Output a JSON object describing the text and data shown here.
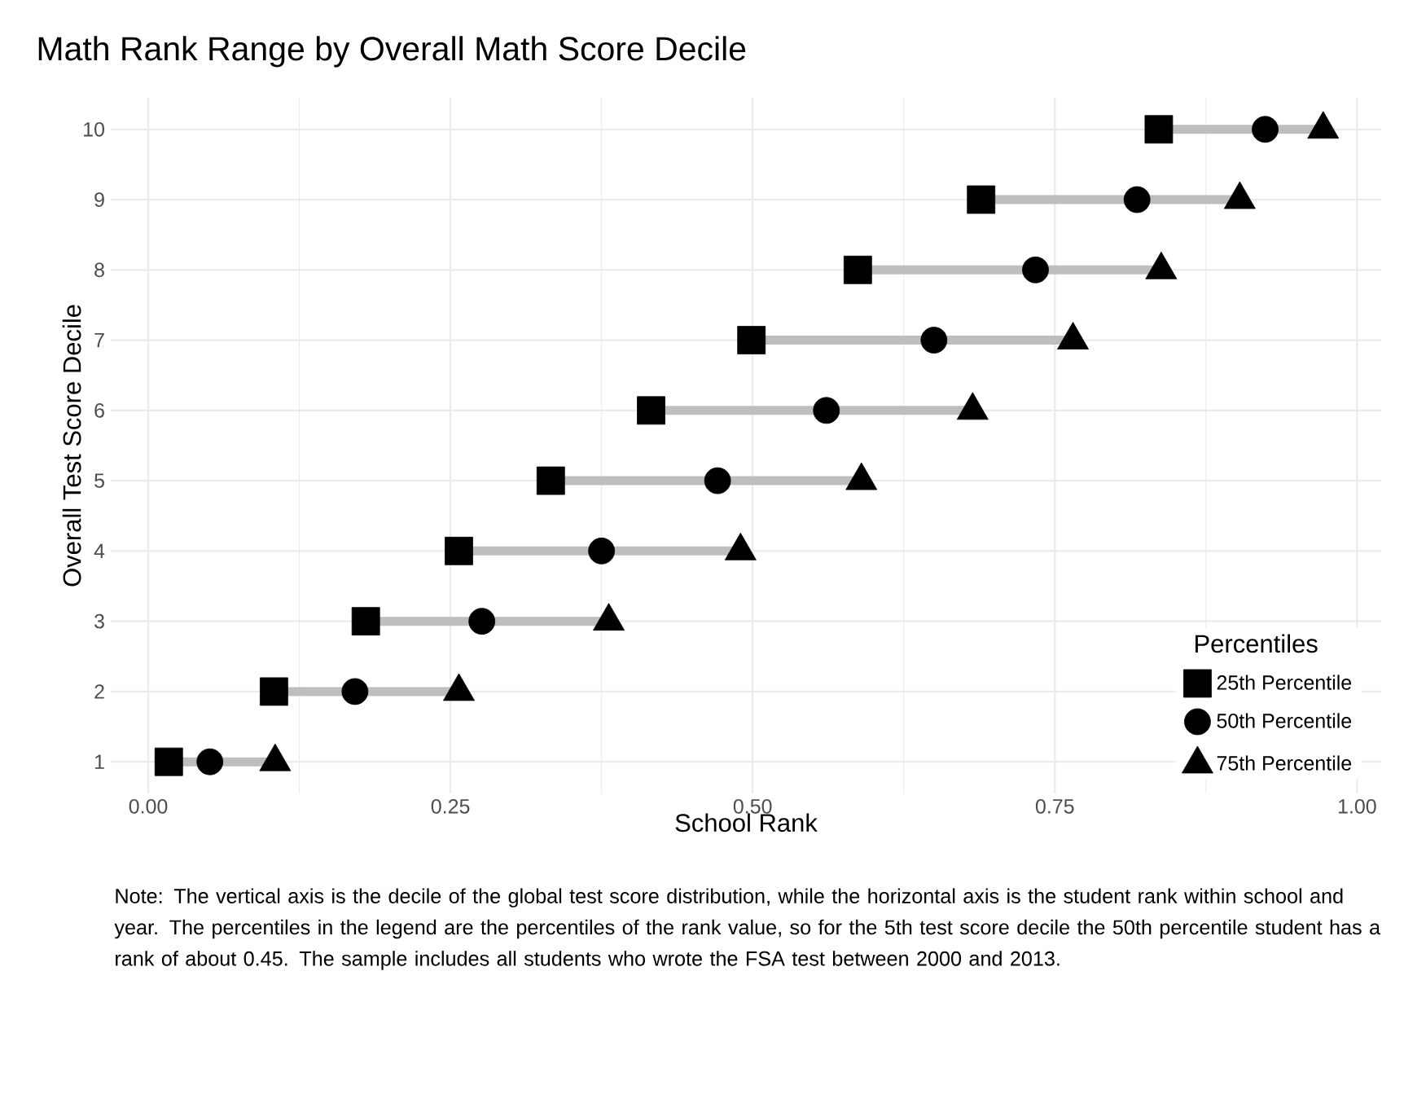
{
  "chart_data": {
    "type": "scatter",
    "title": "Math Rank Range by Overall Math Score Decile",
    "xlabel": "School Rank",
    "ylabel": "Overall Test Score Decile",
    "legend_title": "Percentiles",
    "orientation": "horizontal",
    "categories": [
      "10",
      "9",
      "8",
      "7",
      "6",
      "5",
      "4",
      "3",
      "2",
      "1"
    ],
    "series": [
      {
        "type": "bar",
        "color": "#bebebe",
        "base": [
          0.836,
          0.689,
          0.587,
          0.499,
          0.416,
          0.333,
          0.257,
          0.18,
          0.104,
          0.017
        ],
        "values": [
          0.136,
          0.214,
          0.251,
          0.266,
          0.266,
          0.257,
          0.233,
          0.201,
          0.153,
          0.088
        ]
      },
      {
        "name": "25th Percentile",
        "color": "#000000",
        "marker": "square",
        "values": [
          0.836,
          0.689,
          0.587,
          0.499,
          0.416,
          0.333,
          0.257,
          0.18,
          0.104,
          0.017
        ]
      },
      {
        "name": "50th Percentile",
        "color": "#000000",
        "marker": "circle",
        "values": [
          0.924,
          0.818,
          0.734,
          0.65,
          0.561,
          0.471,
          0.375,
          0.276,
          0.171,
          0.051
        ]
      },
      {
        "name": "75th Percentile",
        "color": "#000000",
        "marker": "triangle",
        "values": [
          0.972,
          0.903,
          0.838,
          0.765,
          0.682,
          0.59,
          0.49,
          0.381,
          0.257,
          0.105
        ]
      }
    ],
    "xlim": [
      -0.031,
      1.02
    ],
    "xticks": [
      {
        "value": 0,
        "label": "0.00"
      },
      {
        "value": 0.25,
        "label": "0.25"
      },
      {
        "value": 0.5,
        "label": "0.50"
      },
      {
        "value": 0.75,
        "label": "0.75"
      },
      {
        "value": 1,
        "label": "1.00"
      }
    ],
    "grid": true,
    "legend": "bottom right",
    "annotations": [
      "Note: The vertical axis is the decile of the global test score distribution, while the horizontal axis is the student rank within school and year. The percentiles in the legend are the percentiles of the rank value, so for the 5th test score decile the 50th percentile student has a rank of about 0.45. The sample includes all students who wrote the FSA test between 2000 and 2013."
    ]
  }
}
